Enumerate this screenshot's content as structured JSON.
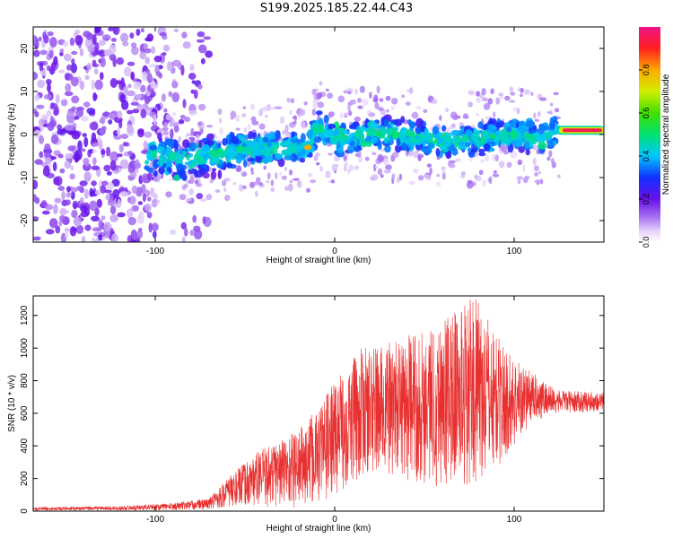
{
  "title": "S199.2025.185.22.44.C43",
  "chart_data": [
    {
      "type": "heatmap",
      "xlabel": "Height of straight line (km)",
      "ylabel": "Frequency (Hz)",
      "xlim": [
        -168,
        150
      ],
      "ylim": [
        -25,
        25
      ],
      "xticks": [
        -100,
        0,
        100
      ],
      "yticks": [
        -20,
        -10,
        0,
        10,
        20
      ],
      "colorbar": {
        "label": "Normalized spectral amplitude",
        "ticks": [
          "0.0",
          "0.2",
          "0.4",
          "0.6",
          "0.8"
        ],
        "range": [
          0,
          1
        ]
      },
      "ridge": {
        "description_free": true,
        "center_freq_points": [
          [
            -95,
            -5
          ],
          [
            -80,
            -6
          ],
          [
            -60,
            -4
          ],
          [
            -40,
            -3
          ],
          [
            -20,
            -3
          ],
          [
            -15,
            -3
          ],
          [
            -10,
            2
          ],
          [
            0,
            -1
          ],
          [
            20,
            0
          ],
          [
            40,
            0
          ],
          [
            60,
            -2
          ],
          [
            80,
            -1
          ],
          [
            100,
            0
          ],
          [
            115,
            -1
          ],
          [
            125,
            1
          ],
          [
            150,
            1
          ]
        ],
        "strongest_segment": {
          "x_start": 125,
          "x_end": 150,
          "freq": 1,
          "amplitude": 0.95
        }
      },
      "grid": false
    },
    {
      "type": "line",
      "xlabel": "Height of straight line (km)",
      "ylabel": "SNR (10 * v/v)",
      "xlim": [
        -168,
        150
      ],
      "ylim": [
        0,
        1320
      ],
      "xticks": [
        -100,
        0,
        100
      ],
      "yticks": [
        0,
        200,
        400,
        600,
        800,
        1000,
        1200
      ],
      "series": [
        {
          "color": "#e83030",
          "envelope": [
            {
              "x": -168,
              "low": 5,
              "high": 25
            },
            {
              "x": -120,
              "low": 5,
              "high": 30
            },
            {
              "x": -90,
              "low": 5,
              "high": 50
            },
            {
              "x": -70,
              "low": 10,
              "high": 80
            },
            {
              "x": -60,
              "low": 20,
              "high": 200
            },
            {
              "x": -45,
              "low": 30,
              "high": 350
            },
            {
              "x": -30,
              "low": 20,
              "high": 450
            },
            {
              "x": -15,
              "low": 10,
              "high": 550
            },
            {
              "x": 0,
              "low": 100,
              "high": 800
            },
            {
              "x": 15,
              "low": 200,
              "high": 1000
            },
            {
              "x": 35,
              "low": 200,
              "high": 1050
            },
            {
              "x": 55,
              "low": 150,
              "high": 1150
            },
            {
              "x": 78,
              "low": 150,
              "high": 1320
            },
            {
              "x": 95,
              "low": 300,
              "high": 1000
            },
            {
              "x": 110,
              "low": 550,
              "high": 850
            },
            {
              "x": 125,
              "low": 600,
              "high": 740
            },
            {
              "x": 150,
              "low": 610,
              "high": 730
            }
          ]
        }
      ],
      "grid": false
    }
  ]
}
